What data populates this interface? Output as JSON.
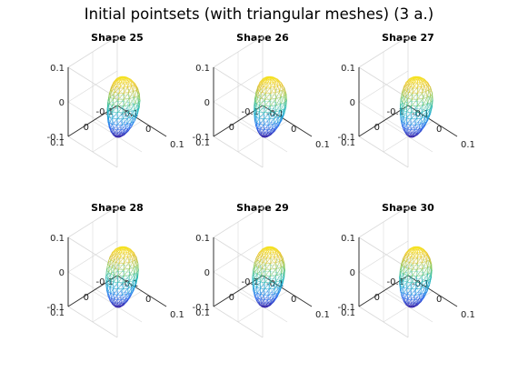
{
  "figure": {
    "title": "Initial pointsets (with triangular meshes) (3 a.)"
  },
  "colors": {
    "colormap": [
      "#3d26a8",
      "#2f6ff3",
      "#1da3d8",
      "#27bcae",
      "#8dca5e",
      "#e6be2c",
      "#f9e81c"
    ],
    "box_line": "#d9d9d9",
    "axis_line": "#333333"
  },
  "chart_data": [
    {
      "type": "surface-mesh",
      "title": "Shape 25",
      "xticks": [
        "-0.1",
        "0",
        "0.1"
      ],
      "yticks": [
        "-0.1",
        "0",
        "0.1"
      ],
      "zticks": [
        "-0.1",
        "0",
        "0.1"
      ],
      "xlim": [
        -0.1,
        0.1
      ],
      "ylim": [
        -0.1,
        0.1
      ],
      "zlim": [
        -0.1,
        0.1
      ],
      "grid": true,
      "colormap": "parula"
    },
    {
      "type": "surface-mesh",
      "title": "Shape 26",
      "xticks": [
        "-0.1",
        "0",
        "0.1"
      ],
      "yticks": [
        "-0.1",
        "0",
        "0.1"
      ],
      "zticks": [
        "-0.1",
        "0",
        "0.1"
      ],
      "xlim": [
        -0.1,
        0.1
      ],
      "ylim": [
        -0.1,
        0.1
      ],
      "zlim": [
        -0.1,
        0.1
      ],
      "grid": true,
      "colormap": "parula"
    },
    {
      "type": "surface-mesh",
      "title": "Shape 27",
      "xticks": [
        "-0.1",
        "0",
        "0.1"
      ],
      "yticks": [
        "-0.1",
        "0",
        "0.1"
      ],
      "zticks": [
        "-0.1",
        "0",
        "0.1"
      ],
      "xlim": [
        -0.1,
        0.1
      ],
      "ylim": [
        -0.1,
        0.1
      ],
      "zlim": [
        -0.1,
        0.1
      ],
      "grid": true,
      "colormap": "parula"
    },
    {
      "type": "surface-mesh",
      "title": "Shape 28",
      "xticks": [
        "-0.1",
        "0",
        "0.1"
      ],
      "yticks": [
        "-0.1",
        "0",
        "0.1"
      ],
      "zticks": [
        "-0.1",
        "0",
        "0.1"
      ],
      "xlim": [
        -0.1,
        0.1
      ],
      "ylim": [
        -0.1,
        0.1
      ],
      "zlim": [
        -0.1,
        0.1
      ],
      "grid": true,
      "colormap": "parula"
    },
    {
      "type": "surface-mesh",
      "title": "Shape 29",
      "xticks": [
        "-0.1",
        "0",
        "0.1"
      ],
      "yticks": [
        "-0.1",
        "0",
        "0.1"
      ],
      "zticks": [
        "-0.1",
        "0",
        "0.1"
      ],
      "xlim": [
        -0.1,
        0.1
      ],
      "ylim": [
        -0.1,
        0.1
      ],
      "zlim": [
        -0.1,
        0.1
      ],
      "grid": true,
      "colormap": "parula"
    },
    {
      "type": "surface-mesh",
      "title": "Shape 30",
      "xticks": [
        "-0.1",
        "0",
        "0.1"
      ],
      "yticks": [
        "-0.1",
        "0",
        "0.1"
      ],
      "zticks": [
        "-0.1",
        "0",
        "0.1"
      ],
      "xlim": [
        -0.1,
        0.1
      ],
      "ylim": [
        -0.1,
        0.1
      ],
      "zlim": [
        -0.1,
        0.1
      ],
      "grid": true,
      "colormap": "parula"
    }
  ]
}
